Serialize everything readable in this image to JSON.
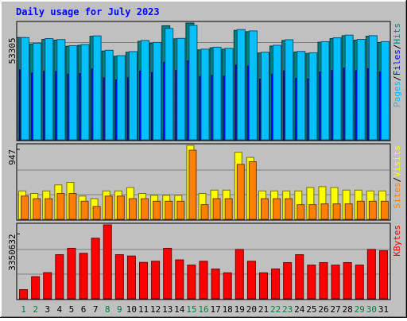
{
  "title": "Daily usage for July 2023",
  "colors": {
    "hits": "#008080",
    "files": "#0000ff",
    "pages": "#00c0ff",
    "visits": "#ffff00",
    "sites": "#ff8000",
    "kbytes": "#ff0000",
    "title": "#0000ff",
    "background": "#c0c0c0",
    "weekend_day": "#008040"
  },
  "chart_data": [
    {
      "type": "bar",
      "panel": "top",
      "y_tick_label": "53305",
      "y_tick_value": 53305,
      "right_label": {
        "parts": [
          "Pages",
          "/",
          "Files",
          "/",
          "Hits"
        ]
      },
      "categories": [
        "1",
        "2",
        "3",
        "4",
        "5",
        "6",
        "7",
        "8",
        "9",
        "10",
        "11",
        "12",
        "13",
        "14",
        "15",
        "16",
        "17",
        "18",
        "19",
        "20",
        "21",
        "22",
        "23",
        "24",
        "25",
        "26",
        "27",
        "28",
        "29",
        "30",
        "31"
      ],
      "series": [
        {
          "name": "Hits",
          "values": [
            53305,
            50000,
            52380,
            52000,
            48800,
            49300,
            54000,
            46300,
            43600,
            45700,
            51400,
            50400,
            59500,
            52700,
            60900,
            46900,
            48000,
            47300,
            57100,
            56400,
            45300,
            48900,
            51800,
            45800,
            45100,
            50900,
            52800,
            54300,
            52000,
            54000,
            50800
          ]
        },
        {
          "name": "Files",
          "values": [
            36580,
            34810,
            35670,
            35670,
            34240,
            34520,
            36950,
            32380,
            31340,
            32380,
            35860,
            35100,
            40330,
            36200,
            41170,
            33010,
            33580,
            33200,
            39000,
            38530,
            31720,
            34140,
            35950,
            32000,
            31720,
            35380,
            36280,
            37430,
            36090,
            37140,
            35380
          ]
        },
        {
          "name": "Pages",
          "values": [
            53305,
            50400,
            52800,
            52300,
            49100,
            49700,
            54200,
            46700,
            43900,
            46000,
            51800,
            50800,
            58100,
            52900,
            59700,
            47300,
            48300,
            47700,
            57500,
            56800,
            45700,
            49300,
            52200,
            46100,
            45400,
            51200,
            53200,
            54600,
            52400,
            54300,
            51200
          ]
        }
      ]
    },
    {
      "type": "bar",
      "panel": "middle",
      "y_tick_label": "947",
      "y_tick_value": 947,
      "right_label": {
        "parts": [
          "Sites",
          "/",
          "Visits"
        ]
      },
      "categories": [
        "1",
        "2",
        "3",
        "4",
        "5",
        "6",
        "7",
        "8",
        "9",
        "10",
        "11",
        "12",
        "13",
        "14",
        "15",
        "16",
        "17",
        "18",
        "19",
        "20",
        "21",
        "22",
        "23",
        "24",
        "25",
        "26",
        "27",
        "28",
        "29",
        "30",
        "31"
      ],
      "series": [
        {
          "name": "Visits",
          "values": [
            384,
            349,
            384,
            465,
            500,
            314,
            279,
            384,
            384,
            430,
            349,
            325,
            325,
            325,
            1000,
            349,
            395,
            395,
            907,
            837,
            384,
            384,
            384,
            384,
            430,
            442,
            430,
            395,
            395,
            384,
            384
          ]
        },
        {
          "name": "Sites",
          "values": [
            314,
            279,
            279,
            349,
            349,
            244,
            174,
            314,
            314,
            279,
            279,
            244,
            244,
            244,
            935,
            198,
            279,
            279,
            744,
            779,
            279,
            279,
            279,
            198,
            198,
            209,
            209,
            209,
            244,
            244,
            244
          ]
        }
      ]
    },
    {
      "type": "bar",
      "panel": "bottom",
      "y_tick_label": "3350632",
      "y_tick_value": 3350632,
      "right_label": {
        "parts": [
          "KBytes"
        ]
      },
      "categories": [
        "1",
        "2",
        "3",
        "4",
        "5",
        "6",
        "7",
        "8",
        "9",
        "10",
        "11",
        "12",
        "13",
        "14",
        "15",
        "16",
        "17",
        "18",
        "19",
        "20",
        "21",
        "22",
        "23",
        "24",
        "25",
        "26",
        "27",
        "28",
        "29",
        "30",
        "31"
      ],
      "series": [
        {
          "name": "KBytes",
          "values": [
            470000,
            1140000,
            1350000,
            2280000,
            2610000,
            2350000,
            3130000,
            3820000,
            2280000,
            2210000,
            1880000,
            1940000,
            2610000,
            2010000,
            1740000,
            1940000,
            1540000,
            1340000,
            2550000,
            1940000,
            1340000,
            1540000,
            1870000,
            2280000,
            1740000,
            1870000,
            1740000,
            1870000,
            1740000,
            2550000,
            2480000
          ]
        }
      ]
    }
  ],
  "x_axis": {
    "labels": [
      "1",
      "2",
      "3",
      "4",
      "5",
      "6",
      "7",
      "8",
      "9",
      "10",
      "11",
      "12",
      "13",
      "14",
      "15",
      "16",
      "17",
      "18",
      "19",
      "20",
      "21",
      "22",
      "23",
      "24",
      "25",
      "26",
      "27",
      "28",
      "29",
      "30",
      "31"
    ],
    "weekend": [
      1,
      2,
      8,
      9,
      15,
      16,
      22,
      23,
      29,
      30
    ]
  }
}
